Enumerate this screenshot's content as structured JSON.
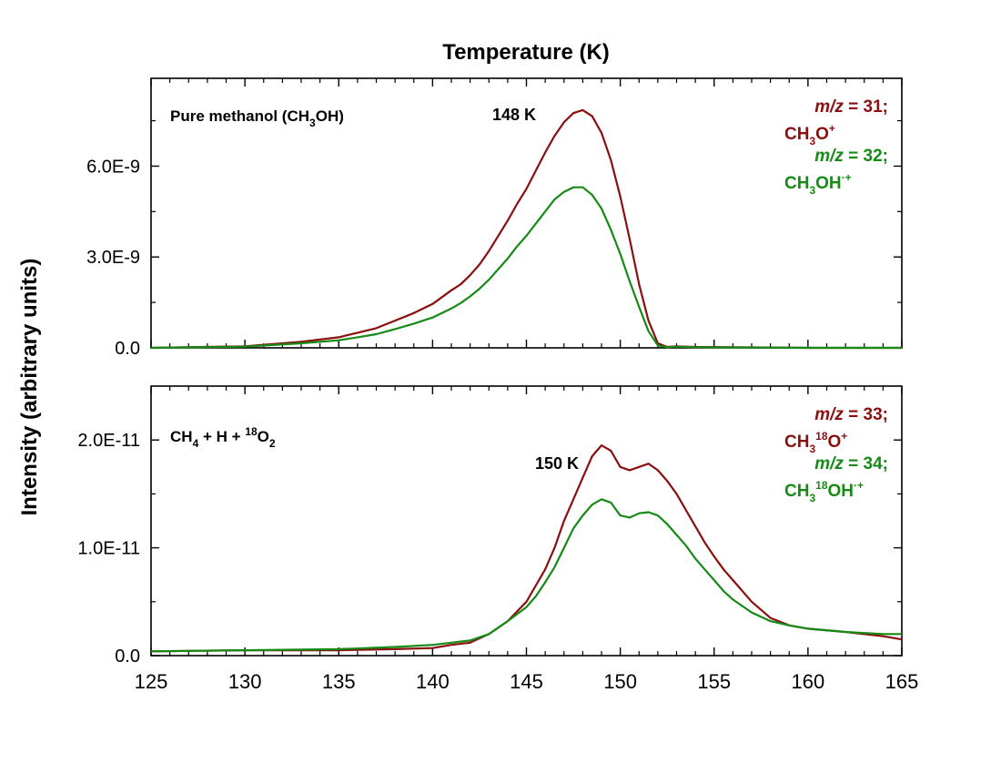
{
  "colors": {
    "red": "#8b0f0f",
    "green": "#168a16",
    "axis": "#000000"
  },
  "figure": {
    "top_axis_title": "Temperature (K)",
    "y_axis_title": "Intensity (arbitrary units)"
  },
  "chart_data": [
    {
      "type": "line",
      "panel": "top",
      "xlim": [
        125,
        165
      ],
      "ylim": [
        0,
        8.9e-09
      ],
      "x_ticks": [
        125,
        130,
        135,
        140,
        145,
        150,
        155,
        160,
        165
      ],
      "y_ticks": [
        0,
        3e-09,
        6e-09
      ],
      "y_tick_labels": [
        "0.0",
        "3.0E-9",
        "6.0E-9"
      ],
      "panel_label": {
        "pre": "Pure methanol (CH",
        "sub": "3",
        "post": "OH)"
      },
      "peak_label": "148 K",
      "legend": [
        {
          "mz_prefix": "m/z",
          "mz_suffix": " = 31;",
          "ion": [
            [
              "CH",
              ""
            ],
            [
              "3",
              "sub"
            ],
            [
              "O",
              ""
            ],
            [
              "+",
              "sup"
            ]
          ]
        },
        {
          "mz_prefix": "m/z",
          "mz_suffix": " = 32;",
          "ion": [
            [
              "CH",
              ""
            ],
            [
              "3",
              "sub"
            ],
            [
              "OH",
              ""
            ],
            [
              "·+",
              "sup"
            ]
          ]
        }
      ],
      "series": [
        {
          "name": "m/z = 31; CH3O+",
          "color": "red",
          "x": [
            125,
            130,
            133,
            135,
            136,
            137,
            138,
            139,
            140,
            141,
            141.5,
            142,
            142.5,
            143,
            143.5,
            144,
            144.5,
            145,
            145.5,
            146,
            146.5,
            147,
            147.5,
            148,
            148.5,
            149,
            149.5,
            150,
            150.5,
            151,
            151.5,
            152,
            152.5,
            153,
            154,
            160,
            165
          ],
          "y": [
            0.0,
            5e-11,
            2e-10,
            3.5e-10,
            5e-10,
            6.5e-10,
            9e-10,
            1.15e-09,
            1.45e-09,
            1.9e-09,
            2.1e-09,
            2.4e-09,
            2.75e-09,
            3.2e-09,
            3.7e-09,
            4.2e-09,
            4.75e-09,
            5.25e-09,
            5.85e-09,
            6.45e-09,
            7e-09,
            7.45e-09,
            7.75e-09,
            7.85e-09,
            7.65e-09,
            7.1e-09,
            6.2e-09,
            5e-09,
            3.6e-09,
            2.1e-09,
            9e-10,
            1.5e-10,
            3e-11,
            5e-11,
            3e-11,
            0.0,
            0.0
          ]
        },
        {
          "name": "m/z = 32; CH3OH·+",
          "color": "green",
          "x": [
            125,
            130,
            133,
            135,
            136,
            137,
            138,
            139,
            140,
            141,
            141.5,
            142,
            142.5,
            143,
            143.5,
            144,
            144.5,
            145,
            145.5,
            146,
            146.5,
            147,
            147.5,
            148,
            148.5,
            149,
            149.5,
            150,
            150.5,
            151,
            151.5,
            152,
            152.5,
            153,
            154,
            160,
            165
          ],
          "y": [
            0.0,
            4e-11,
            1.5e-10,
            2.5e-10,
            3.5e-10,
            4.5e-10,
            6.2e-10,
            8e-10,
            1e-09,
            1.3e-09,
            1.48e-09,
            1.7e-09,
            1.95e-09,
            2.25e-09,
            2.6e-09,
            2.95e-09,
            3.35e-09,
            3.7e-09,
            4.1e-09,
            4.5e-09,
            4.9e-09,
            5.15e-09,
            5.3e-09,
            5.3e-09,
            5.05e-09,
            4.6e-09,
            3.9e-09,
            3.1e-09,
            2.2e-09,
            1.35e-09,
            5.5e-10,
            8e-11,
            2e-11,
            4e-11,
            2e-11,
            0.0,
            0.0
          ]
        }
      ]
    },
    {
      "type": "line",
      "panel": "bottom",
      "xlim": [
        125,
        165
      ],
      "ylim": [
        0,
        2.5e-11
      ],
      "x_ticks": [
        125,
        130,
        135,
        140,
        145,
        150,
        155,
        160,
        165
      ],
      "x_tick_labels": [
        "125",
        "130",
        "135",
        "140",
        "145",
        "150",
        "155",
        "160",
        "165"
      ],
      "y_ticks": [
        0,
        1e-11,
        2e-11
      ],
      "y_tick_labels": [
        "0.0",
        "1.0E-11",
        "2.0E-11"
      ],
      "panel_label": {
        "a": "CH",
        "a_sub": "4",
        "b": " + H + ",
        "c_sup": "18",
        "c": "O",
        "c_sub": "2"
      },
      "peak_label": "150 K",
      "legend": [
        {
          "mz_prefix": "m/z",
          "mz_suffix": " = 33;",
          "ion": [
            [
              "CH",
              ""
            ],
            [
              "3",
              "sub"
            ],
            [
              "18",
              "sup"
            ],
            [
              "O",
              ""
            ],
            [
              "+",
              "sup"
            ]
          ]
        },
        {
          "mz_prefix": "m/z",
          "mz_suffix": " = 34;",
          "ion": [
            [
              "CH",
              ""
            ],
            [
              "3",
              "sub"
            ],
            [
              "18",
              "sup"
            ],
            [
              "OH",
              ""
            ],
            [
              "·+",
              "sup"
            ]
          ]
        }
      ],
      "series": [
        {
          "name": "m/z = 33; CH3 18O+",
          "color": "red",
          "x": [
            125,
            130,
            135,
            138,
            140,
            141,
            142,
            143,
            144,
            145,
            145.5,
            146,
            146.5,
            147,
            147.5,
            148,
            148.5,
            149,
            149.5,
            150,
            150.5,
            151,
            151.5,
            152,
            152.5,
            153,
            153.5,
            154,
            154.5,
            155,
            155.5,
            156,
            157,
            158,
            159,
            160,
            162,
            164,
            165
          ],
          "y": [
            4e-13,
            5e-13,
            5e-13,
            6e-13,
            7e-13,
            1e-12,
            1.2e-12,
            2e-12,
            3.2e-12,
            5e-12,
            6.5e-12,
            8e-12,
            1e-11,
            1.25e-11,
            1.45e-11,
            1.65e-11,
            1.85e-11,
            1.95e-11,
            1.9e-11,
            1.75e-11,
            1.72e-11,
            1.75e-11,
            1.78e-11,
            1.72e-11,
            1.62e-11,
            1.5e-11,
            1.35e-11,
            1.2e-11,
            1.05e-11,
            9.2e-12,
            8e-12,
            7e-12,
            5e-12,
            3.5e-12,
            2.8e-12,
            2.5e-12,
            2.2e-12,
            1.8e-12,
            1.5e-12
          ]
        },
        {
          "name": "m/z = 34; CH3 18OH·+",
          "color": "green",
          "x": [
            125,
            130,
            135,
            138,
            140,
            141,
            142,
            143,
            144,
            145,
            145.5,
            146,
            146.5,
            147,
            147.5,
            148,
            148.5,
            149,
            149.5,
            150,
            150.5,
            151,
            151.5,
            152,
            152.5,
            153,
            153.5,
            154,
            154.5,
            155,
            155.5,
            156,
            157,
            158,
            159,
            160,
            162,
            164,
            165
          ],
          "y": [
            4e-13,
            5e-13,
            6e-13,
            8e-13,
            1e-12,
            1.2e-12,
            1.4e-12,
            2e-12,
            3.2e-12,
            4.5e-12,
            5.5e-12,
            6.8e-12,
            8.2e-12,
            1e-11,
            1.18e-11,
            1.3e-11,
            1.4e-11,
            1.45e-11,
            1.42e-11,
            1.3e-11,
            1.28e-11,
            1.32e-11,
            1.33e-11,
            1.3e-11,
            1.22e-11,
            1.12e-11,
            1.02e-11,
            9e-12,
            8e-12,
            7e-12,
            6e-12,
            5.2e-12,
            4e-12,
            3.2e-12,
            2.8e-12,
            2.5e-12,
            2.2e-12,
            2e-12,
            2e-12
          ]
        }
      ]
    }
  ]
}
